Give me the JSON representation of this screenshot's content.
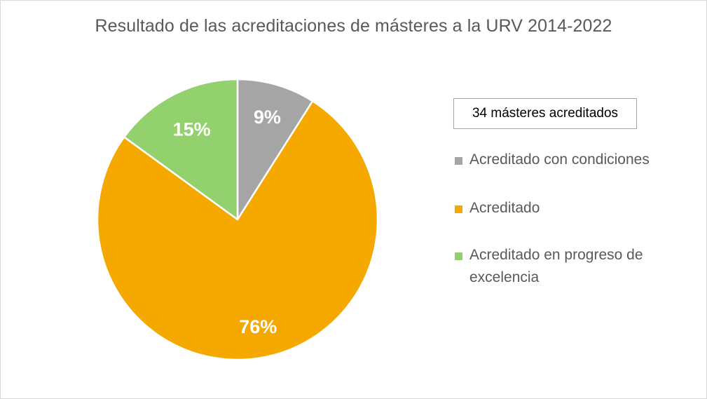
{
  "chart_data": {
    "type": "pie",
    "title": "Resultado de las acreditaciones de másteres a la URV 2014-2022",
    "annotation": "34 másteres acreditados",
    "slices": [
      {
        "label": "Acreditado con condiciones",
        "value": 9,
        "display": "9%",
        "color": "#a5a5a5"
      },
      {
        "label": "Acreditado",
        "value": 76,
        "display": "76%",
        "color": "#f5a800"
      },
      {
        "label": "Acreditado en progreso de excelencia",
        "value": 15,
        "display": "15%",
        "color": "#92d16e"
      }
    ],
    "legend_position": "right",
    "label_color": "#ffffff"
  }
}
